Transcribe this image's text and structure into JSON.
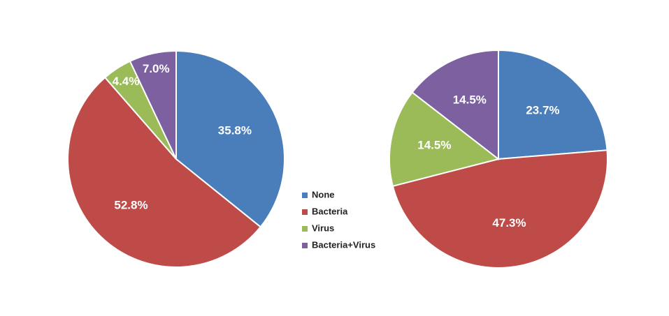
{
  "chart_data": [
    {
      "type": "pie",
      "categories": [
        "None",
        "Bacteria",
        "Virus",
        "Bacteria+Virus"
      ],
      "values": [
        35.8,
        52.8,
        4.4,
        7.0
      ],
      "value_labels": [
        "35.8%",
        "52.8%",
        "4.4%",
        "7.0%"
      ],
      "colors": [
        "#4a7ebb",
        "#be4b48",
        "#9bbb59",
        "#7d60a0"
      ]
    },
    {
      "type": "pie",
      "categories": [
        "None",
        "Bacteria",
        "Virus",
        "Bacteria+Virus"
      ],
      "values": [
        23.7,
        47.3,
        14.5,
        14.5
      ],
      "value_labels": [
        "23.7%",
        "47.3%",
        "14.5%",
        "14.5%"
      ],
      "colors": [
        "#4a7ebb",
        "#be4b48",
        "#9bbb59",
        "#7d60a0"
      ]
    }
  ]
}
